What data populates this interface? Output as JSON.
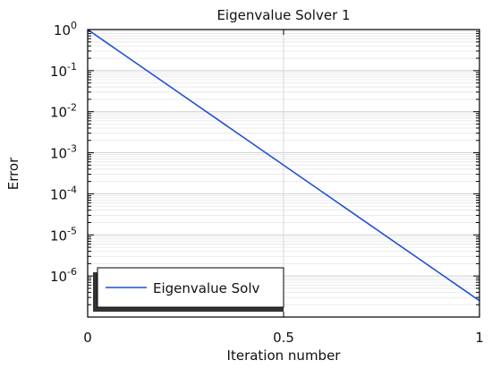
{
  "chart_data": {
    "type": "line",
    "title": "Eigenvalue Solver 1",
    "xlabel": "Iteration number",
    "ylabel": "Error",
    "xlim": [
      0,
      1
    ],
    "ylim_exponent": [
      -7,
      0
    ],
    "y_scale": "log",
    "x_ticks": [
      "0",
      "0.5",
      "1"
    ],
    "y_tick_exponents": [
      "0",
      "-1",
      "-2",
      "-3",
      "-4",
      "-5",
      "-6"
    ],
    "y_tick_base": "10",
    "grid": true,
    "legend_position": "bottom-left",
    "series": [
      {
        "name": "Eigenvalue Solv",
        "color": "#1f4fd8",
        "x": [
          0,
          1
        ],
        "y": [
          1,
          2.5e-07
        ]
      }
    ]
  }
}
